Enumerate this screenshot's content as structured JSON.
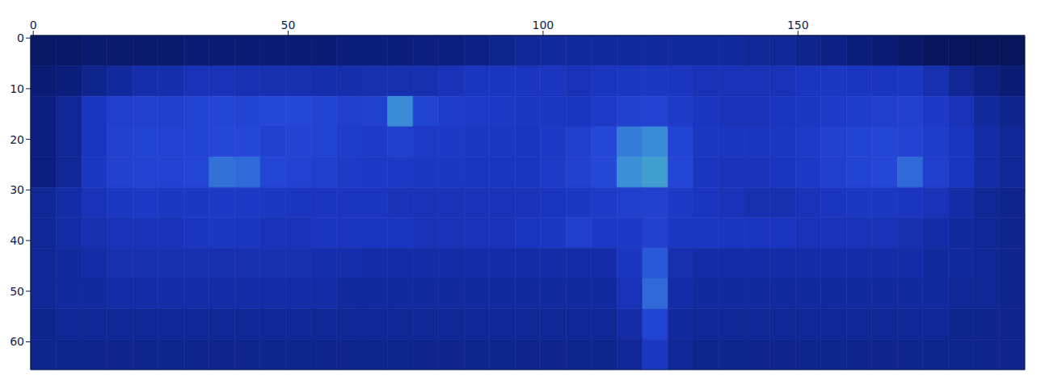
{
  "chart_data": {
    "type": "heatmap",
    "xlim": [
      -0.5,
      194.5
    ],
    "xticks": [
      0,
      50,
      100,
      150
    ],
    "ylim": [
      65.5,
      -0.5
    ],
    "yticks": [
      0,
      10,
      20,
      30,
      40,
      50,
      60
    ],
    "x_edges": [
      -0.5,
      4.5,
      9.5,
      14.5,
      19.5,
      24.5,
      29.5,
      34.5,
      39.5,
      44.5,
      49.5,
      54.5,
      59.5,
      64.5,
      69.5,
      74.5,
      79.5,
      84.5,
      89.5,
      94.5,
      99.5,
      104.5,
      109.5,
      114.5,
      119.5,
      124.5,
      129.5,
      134.5,
      139.5,
      144.5,
      149.5,
      154.5,
      159.5,
      164.5,
      169.5,
      174.5,
      179.5,
      184.5,
      189.5,
      194.5
    ],
    "y_edges": [
      -0.5,
      5.5,
      11.5,
      17.5,
      23.5,
      29.5,
      35.5,
      41.5,
      47.5,
      53.5,
      59.5,
      65.5
    ],
    "color_range": [
      0,
      1
    ],
    "cells": [
      [
        0.08,
        0.08,
        0.1,
        0.1,
        0.1,
        0.1,
        0.12,
        0.12,
        0.12,
        0.12,
        0.12,
        0.12,
        0.14,
        0.14,
        0.14,
        0.15,
        0.15,
        0.16,
        0.18,
        0.2,
        0.22,
        0.22,
        0.22,
        0.22,
        0.22,
        0.22,
        0.22,
        0.22,
        0.2,
        0.2,
        0.18,
        0.16,
        0.14,
        0.12,
        0.08,
        0.06,
        0.05,
        0.05,
        0.05
      ],
      [
        0.12,
        0.14,
        0.18,
        0.22,
        0.25,
        0.25,
        0.28,
        0.28,
        0.27,
        0.26,
        0.26,
        0.25,
        0.25,
        0.26,
        0.26,
        0.26,
        0.28,
        0.3,
        0.3,
        0.3,
        0.3,
        0.28,
        0.3,
        0.32,
        0.32,
        0.3,
        0.28,
        0.28,
        0.28,
        0.28,
        0.3,
        0.32,
        0.3,
        0.3,
        0.32,
        0.26,
        0.2,
        0.16,
        0.12
      ],
      [
        0.15,
        0.2,
        0.3,
        0.4,
        0.42,
        0.4,
        0.45,
        0.48,
        0.45,
        0.5,
        0.5,
        0.45,
        0.4,
        0.42,
        0.7,
        0.45,
        0.38,
        0.36,
        0.34,
        0.32,
        0.32,
        0.3,
        0.36,
        0.42,
        0.44,
        0.36,
        0.3,
        0.28,
        0.28,
        0.3,
        0.32,
        0.35,
        0.38,
        0.4,
        0.42,
        0.34,
        0.28,
        0.22,
        0.18
      ],
      [
        0.15,
        0.2,
        0.3,
        0.42,
        0.45,
        0.44,
        0.45,
        0.5,
        0.5,
        0.42,
        0.46,
        0.45,
        0.38,
        0.36,
        0.4,
        0.35,
        0.34,
        0.32,
        0.32,
        0.3,
        0.34,
        0.4,
        0.5,
        0.65,
        0.7,
        0.45,
        0.32,
        0.3,
        0.3,
        0.32,
        0.35,
        0.42,
        0.45,
        0.48,
        0.46,
        0.38,
        0.3,
        0.24,
        0.2
      ],
      [
        0.15,
        0.2,
        0.32,
        0.42,
        0.44,
        0.44,
        0.48,
        0.62,
        0.6,
        0.48,
        0.44,
        0.4,
        0.36,
        0.34,
        0.34,
        0.32,
        0.32,
        0.3,
        0.3,
        0.3,
        0.35,
        0.42,
        0.5,
        0.72,
        0.78,
        0.48,
        0.3,
        0.28,
        0.28,
        0.3,
        0.34,
        0.4,
        0.45,
        0.5,
        0.6,
        0.4,
        0.3,
        0.24,
        0.2
      ],
      [
        0.2,
        0.24,
        0.28,
        0.32,
        0.34,
        0.32,
        0.32,
        0.34,
        0.34,
        0.32,
        0.3,
        0.3,
        0.3,
        0.3,
        0.28,
        0.28,
        0.28,
        0.28,
        0.28,
        0.28,
        0.3,
        0.32,
        0.36,
        0.4,
        0.42,
        0.34,
        0.3,
        0.28,
        0.26,
        0.26,
        0.28,
        0.3,
        0.32,
        0.32,
        0.3,
        0.28,
        0.24,
        0.2,
        0.18
      ],
      [
        0.2,
        0.24,
        0.26,
        0.28,
        0.28,
        0.28,
        0.3,
        0.32,
        0.3,
        0.28,
        0.28,
        0.3,
        0.3,
        0.3,
        0.3,
        0.28,
        0.28,
        0.28,
        0.28,
        0.3,
        0.32,
        0.4,
        0.34,
        0.34,
        0.42,
        0.32,
        0.32,
        0.3,
        0.3,
        0.3,
        0.28,
        0.28,
        0.28,
        0.28,
        0.26,
        0.24,
        0.22,
        0.2,
        0.18
      ],
      [
        0.2,
        0.22,
        0.24,
        0.26,
        0.26,
        0.26,
        0.26,
        0.26,
        0.26,
        0.26,
        0.26,
        0.25,
        0.25,
        0.24,
        0.24,
        0.24,
        0.24,
        0.24,
        0.24,
        0.24,
        0.24,
        0.24,
        0.24,
        0.3,
        0.55,
        0.26,
        0.24,
        0.24,
        0.24,
        0.24,
        0.24,
        0.24,
        0.24,
        0.24,
        0.24,
        0.22,
        0.22,
        0.2,
        0.18
      ],
      [
        0.2,
        0.22,
        0.22,
        0.24,
        0.24,
        0.24,
        0.24,
        0.24,
        0.24,
        0.24,
        0.24,
        0.24,
        0.22,
        0.22,
        0.22,
        0.22,
        0.22,
        0.22,
        0.22,
        0.22,
        0.22,
        0.22,
        0.22,
        0.28,
        0.6,
        0.24,
        0.22,
        0.22,
        0.22,
        0.22,
        0.22,
        0.22,
        0.22,
        0.22,
        0.22,
        0.22,
        0.2,
        0.2,
        0.18
      ],
      [
        0.18,
        0.2,
        0.2,
        0.2,
        0.2,
        0.2,
        0.2,
        0.2,
        0.2,
        0.2,
        0.2,
        0.2,
        0.2,
        0.2,
        0.2,
        0.2,
        0.2,
        0.2,
        0.2,
        0.2,
        0.2,
        0.2,
        0.2,
        0.24,
        0.45,
        0.22,
        0.2,
        0.2,
        0.2,
        0.2,
        0.2,
        0.2,
        0.2,
        0.2,
        0.2,
        0.2,
        0.18,
        0.18,
        0.18
      ],
      [
        0.18,
        0.18,
        0.18,
        0.18,
        0.18,
        0.18,
        0.18,
        0.18,
        0.18,
        0.18,
        0.18,
        0.18,
        0.18,
        0.18,
        0.18,
        0.18,
        0.18,
        0.18,
        0.18,
        0.18,
        0.18,
        0.18,
        0.18,
        0.2,
        0.32,
        0.2,
        0.18,
        0.18,
        0.18,
        0.18,
        0.18,
        0.18,
        0.18,
        0.18,
        0.18,
        0.18,
        0.18,
        0.18,
        0.18
      ]
    ]
  }
}
